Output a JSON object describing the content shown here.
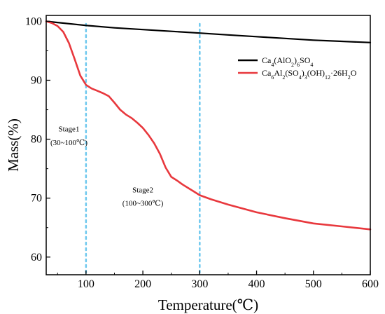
{
  "chart_data": {
    "type": "line",
    "title": "",
    "xlabel": "Temperature(℃)",
    "ylabel": "Mass(%)",
    "xlim": [
      30,
      600
    ],
    "ylim": [
      57,
      101
    ],
    "xticks": [
      100,
      200,
      300,
      400,
      500,
      600
    ],
    "yticks": [
      60,
      70,
      80,
      90,
      100
    ],
    "grid": false,
    "legend_position": "top-right",
    "series": [
      {
        "name_parts": [
          {
            "t": "Ca",
            "s": null
          },
          {
            "t": "4",
            "s": "sub"
          },
          {
            "t": "(AlO",
            "s": null
          },
          {
            "t": "2",
            "s": "sub"
          },
          {
            "t": ")",
            "s": null
          },
          {
            "t": "6",
            "s": "sub"
          },
          {
            "t": "SO",
            "s": null
          },
          {
            "t": "4",
            "s": "sub"
          }
        ],
        "color": "#000000",
        "x": [
          30,
          50,
          100,
          150,
          200,
          250,
          300,
          350,
          400,
          450,
          500,
          550,
          600
        ],
        "y": [
          100,
          99.8,
          99.3,
          98.9,
          98.6,
          98.3,
          98.0,
          97.7,
          97.4,
          97.1,
          96.8,
          96.6,
          96.4
        ]
      },
      {
        "name_parts": [
          {
            "t": "Ca",
            "s": null
          },
          {
            "t": "6",
            "s": "sub"
          },
          {
            "t": "Al",
            "s": null
          },
          {
            "t": "2",
            "s": "sub"
          },
          {
            "t": "(SO",
            "s": null
          },
          {
            "t": "4",
            "s": "sub"
          },
          {
            "t": ")",
            "s": null
          },
          {
            "t": "3",
            "s": "sub"
          },
          {
            "t": "(OH)",
            "s": null
          },
          {
            "t": "12",
            "s": "sub"
          },
          {
            "t": "·26H",
            "s": null
          },
          {
            "t": "2",
            "s": "sub"
          },
          {
            "t": "O",
            "s": null
          }
        ],
        "color": "#e8383d",
        "x": [
          30,
          40,
          50,
          60,
          70,
          80,
          90,
          100,
          110,
          120,
          130,
          140,
          150,
          160,
          170,
          180,
          190,
          200,
          210,
          220,
          230,
          240,
          250,
          260,
          270,
          280,
          290,
          300,
          320,
          350,
          400,
          450,
          500,
          550,
          600
        ],
        "y": [
          100,
          99.7,
          99.2,
          98.2,
          96.3,
          93.6,
          90.8,
          89.2,
          88.6,
          88.2,
          87.8,
          87.3,
          86.2,
          85.0,
          84.2,
          83.6,
          82.8,
          81.9,
          80.7,
          79.3,
          77.5,
          75.2,
          73.6,
          73.0,
          72.3,
          71.7,
          71.1,
          70.5,
          69.8,
          68.9,
          67.6,
          66.6,
          65.7,
          65.2,
          64.7
        ]
      }
    ],
    "vlines": [
      {
        "x": 100,
        "color": "#6ec8ee"
      },
      {
        "x": 300,
        "color": "#6ec8ee"
      }
    ],
    "annotations": [
      {
        "lines": [
          "Stage1",
          "(30~100℃)"
        ],
        "x": 70,
        "y": [
          81.3,
          79.0
        ]
      },
      {
        "lines": [
          "Stage2",
          "(100~300℃)"
        ],
        "x": 200,
        "y": [
          71.0,
          68.7
        ]
      }
    ]
  }
}
